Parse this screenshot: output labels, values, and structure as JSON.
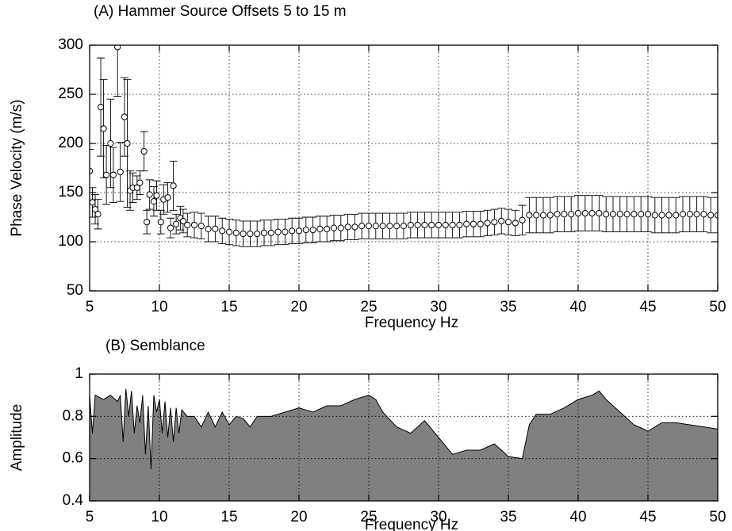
{
  "chart_data": [
    {
      "type": "scatter",
      "title": "(A) Hammer Source Offsets 5 to 15 m",
      "x_label": "Frequency Hz",
      "y_label": "Phase Velocity (m/s)",
      "xlim": [
        5,
        50
      ],
      "ylim": [
        50,
        300
      ],
      "xticks": [
        5,
        10,
        15,
        20,
        25,
        30,
        35,
        40,
        45,
        50
      ],
      "yticks": [
        50,
        100,
        150,
        200,
        250,
        300
      ],
      "grid": true,
      "color": "#000000",
      "x": [
        5.0,
        5.2,
        5.4,
        5.6,
        5.8,
        6.0,
        6.2,
        6.5,
        6.7,
        7.0,
        7.2,
        7.5,
        7.7,
        7.9,
        8.1,
        8.4,
        8.6,
        8.9,
        9.1,
        9.3,
        9.6,
        9.8,
        10.1,
        10.3,
        10.6,
        10.8,
        11.0,
        11.2,
        11.5,
        11.7,
        12.0,
        12.5,
        13,
        13.5,
        14,
        14.5,
        15,
        15.5,
        16,
        16.5,
        17,
        17.5,
        18,
        18.5,
        19,
        19.5,
        20,
        20.5,
        21,
        21.5,
        22,
        22.5,
        23,
        23.5,
        24,
        24.5,
        25,
        25.5,
        26,
        26.5,
        27,
        27.5,
        28,
        28.5,
        29,
        29.5,
        30,
        30.5,
        31,
        31.5,
        32,
        32.5,
        33,
        33.5,
        34,
        34.5,
        35,
        35.5,
        36,
        36.5,
        37,
        37.5,
        38,
        38.5,
        39,
        39.5,
        40,
        40.5,
        41,
        41.5,
        42,
        42.5,
        43,
        43.5,
        44,
        44.5,
        45,
        45.5,
        46,
        46.5,
        47,
        47.5,
        48,
        48.5,
        49,
        49.5,
        50
      ],
      "values": [
        172,
        140,
        133,
        128,
        237,
        215,
        168,
        200,
        168,
        298,
        171,
        227,
        200,
        152,
        155,
        155,
        160,
        192,
        120,
        148,
        141,
        147,
        120,
        143,
        145,
        114,
        157,
        118,
        124,
        121,
        117,
        117,
        116,
        113,
        113,
        111,
        110,
        109,
        108,
        108,
        108,
        109,
        109,
        110,
        110,
        111,
        111,
        112,
        112,
        113,
        113,
        114,
        114,
        115,
        115,
        116,
        116,
        116,
        116,
        116,
        116,
        116,
        117,
        117,
        117,
        117,
        117,
        117,
        117,
        117,
        118,
        118,
        118,
        119,
        120,
        121,
        120,
        119,
        122,
        127,
        127,
        127,
        127,
        128,
        128,
        128,
        129,
        129,
        129,
        129,
        128,
        128,
        128,
        128,
        128,
        128,
        128,
        127,
        127,
        127,
        127,
        128,
        128,
        128,
        128,
        127,
        127
      ],
      "errors": [
        22,
        15,
        15,
        15,
        50,
        50,
        30,
        45,
        28,
        50,
        30,
        40,
        65,
        20,
        15,
        12,
        12,
        20,
        12,
        15,
        15,
        15,
        12,
        15,
        15,
        10,
        25,
        10,
        12,
        12,
        12,
        13,
        13,
        13,
        13,
        13,
        13,
        13,
        13,
        13,
        13,
        13,
        13,
        13,
        13,
        13,
        13,
        13,
        13,
        13,
        13,
        13,
        13,
        13,
        13,
        13,
        13,
        13,
        13,
        13,
        13,
        13,
        13,
        13,
        13,
        13,
        13,
        13,
        13,
        13,
        13,
        13,
        13,
        13,
        13,
        13,
        13,
        13,
        15,
        18,
        18,
        18,
        18,
        18,
        18,
        18,
        18,
        18,
        18,
        18,
        18,
        18,
        18,
        18,
        18,
        18,
        18,
        18,
        18,
        18,
        18,
        18,
        18,
        18,
        18,
        18,
        18
      ]
    },
    {
      "type": "area",
      "title": "(B) Semblance",
      "x_label": "Frequency Hz",
      "y_label": "Amplitude",
      "xlim": [
        5,
        50
      ],
      "ylim": [
        0.4,
        1
      ],
      "xticks": [
        5,
        10,
        15,
        20,
        25,
        30,
        35,
        40,
        45,
        50
      ],
      "yticks": [
        0.4,
        0.6,
        0.8,
        1
      ],
      "grid": true,
      "color": "#808080",
      "x": [
        5,
        5.2,
        5.4,
        6,
        6.5,
        7,
        7.2,
        7.4,
        7.6,
        7.8,
        8,
        8.2,
        8.4,
        8.6,
        8.8,
        9,
        9.2,
        9.4,
        9.6,
        9.8,
        10,
        10.2,
        10.4,
        10.6,
        10.8,
        11,
        11.2,
        11.4,
        11.6,
        12,
        12.5,
        13,
        13.5,
        14,
        14.5,
        15,
        15.5,
        16,
        16.5,
        17,
        18,
        19,
        20,
        21,
        22,
        23,
        24,
        25,
        25.5,
        26,
        27,
        28,
        29,
        30,
        31,
        32,
        33,
        34,
        35,
        36,
        36.5,
        37,
        38,
        39,
        40,
        41,
        41.5,
        42,
        43,
        44,
        45,
        46,
        47,
        48,
        49,
        50
      ],
      "values": [
        0.9,
        0.72,
        0.9,
        0.88,
        0.9,
        0.87,
        0.9,
        0.68,
        0.93,
        0.8,
        0.92,
        0.72,
        0.85,
        0.77,
        0.9,
        0.62,
        0.85,
        0.55,
        0.9,
        0.82,
        0.88,
        0.72,
        0.87,
        0.7,
        0.84,
        0.68,
        0.84,
        0.72,
        0.83,
        0.8,
        0.8,
        0.75,
        0.82,
        0.75,
        0.82,
        0.76,
        0.8,
        0.79,
        0.75,
        0.8,
        0.8,
        0.82,
        0.84,
        0.82,
        0.85,
        0.85,
        0.88,
        0.9,
        0.88,
        0.82,
        0.75,
        0.72,
        0.78,
        0.7,
        0.62,
        0.64,
        0.64,
        0.67,
        0.61,
        0.6,
        0.76,
        0.81,
        0.81,
        0.84,
        0.88,
        0.9,
        0.92,
        0.88,
        0.82,
        0.76,
        0.73,
        0.77,
        0.77,
        0.76,
        0.75,
        0.74
      ]
    }
  ]
}
